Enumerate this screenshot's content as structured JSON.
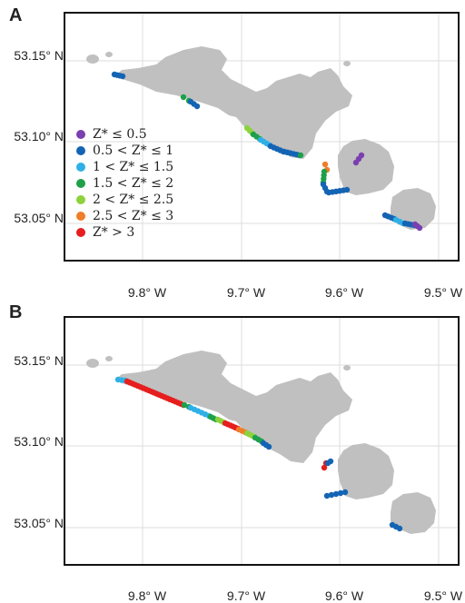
{
  "panels": [
    {
      "letter": "A"
    },
    {
      "letter": "B"
    }
  ],
  "lat_ticks": [
    {
      "value": 53.15,
      "label": "53.15° N"
    },
    {
      "value": 53.1,
      "label": "53.10° N"
    },
    {
      "value": 53.05,
      "label": "53.05° N"
    }
  ],
  "lon_ticks": [
    {
      "value": -9.8,
      "label": "9.8° W"
    },
    {
      "value": -9.7,
      "label": "9.7° W"
    },
    {
      "value": -9.6,
      "label": "9.6° W"
    },
    {
      "value": -9.5,
      "label": "9.5° W"
    }
  ],
  "legend": [
    {
      "label": "Z* ≤ 0.5",
      "color": "#7b3fb0"
    },
    {
      "label": "0.5 < Z* ≤ 1",
      "color": "#1464b4"
    },
    {
      "label": "1 < Z* ≤ 1.5",
      "color": "#2eb0e6"
    },
    {
      "label": "1.5 < Z* ≤ 2",
      "color": "#1ea04a"
    },
    {
      "label": "2 < Z* ≤ 2.5",
      "color": "#8cd23c"
    },
    {
      "label": "2.5 < Z* ≤ 3",
      "color": "#f07d28"
    },
    {
      "label": "Z* > 3",
      "color": "#e61e1e"
    }
  ],
  "colors": {
    "land": "#c0c0c0",
    "grid": "#dedede",
    "frame": "#111111"
  }
}
